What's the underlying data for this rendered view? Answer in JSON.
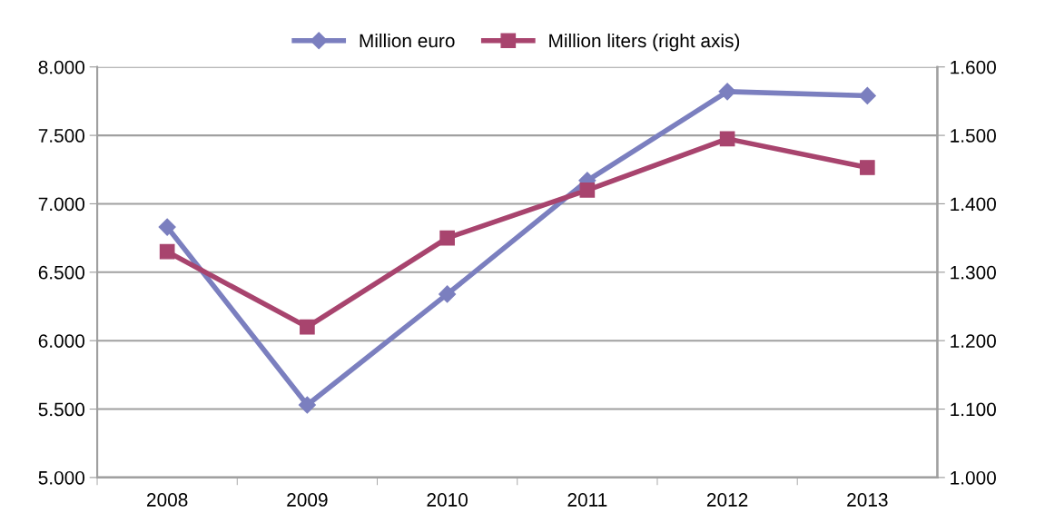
{
  "chart_data": {
    "type": "line",
    "categories": [
      "2008",
      "2009",
      "2010",
      "2011",
      "2012",
      "2013"
    ],
    "series": [
      {
        "name": "Million euro",
        "color": "#7b7fbf",
        "marker": "diamond",
        "values": [
          6830,
          5530,
          6340,
          7170,
          7820,
          7790
        ]
      },
      {
        "name": "Million liters (right axis)",
        "color": "#a8446e",
        "marker": "square",
        "axis": "y2",
        "values": [
          1330,
          1220,
          1350,
          1420,
          1495,
          1453
        ]
      }
    ],
    "ylim": [
      5000,
      8000
    ],
    "yticks": [
      {
        "value": 5000,
        "label": "5.000"
      },
      {
        "value": 5500,
        "label": "5.500"
      },
      {
        "value": 6000,
        "label": "6.000"
      },
      {
        "value": 6500,
        "label": "6.500"
      },
      {
        "value": 7000,
        "label": "7.000"
      },
      {
        "value": 7500,
        "label": "7.500"
      },
      {
        "value": 8000,
        "label": "8.000"
      }
    ],
    "y2lim": [
      1000,
      1600
    ],
    "y2ticks": [
      {
        "value": 1000,
        "label": "1.000"
      },
      {
        "value": 1100,
        "label": "1.100"
      },
      {
        "value": 1200,
        "label": "1.200"
      },
      {
        "value": 1300,
        "label": "1.300"
      },
      {
        "value": 1400,
        "label": "1.400"
      },
      {
        "value": 1500,
        "label": "1.500"
      },
      {
        "value": 1600,
        "label": "1.600"
      }
    ],
    "grid": "y",
    "legend": "top",
    "line_style": "solid"
  }
}
